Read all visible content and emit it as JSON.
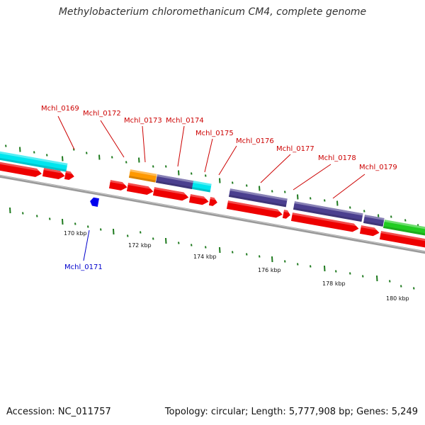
{
  "title": "Methylobacterium chloromethanicum CM4, complete genome",
  "footer": {
    "accession": "Accession: NC_011757",
    "summary": "Topology: circular; Length: 5,777,908 bp; Genes: 5,249"
  },
  "colors": {
    "backbone": "#8a8a8a",
    "cds_forward": "#ee0000",
    "cds_reverse": "#0000ee",
    "label_forward": "#cc0000",
    "label_reverse": "#0000cc",
    "cyan": "#00e5ee",
    "navy": "#4b3f8f",
    "orange": "#ff9900",
    "green": "#22cc22",
    "gc_tick": "#1e7a1e"
  },
  "scale_labels": [
    "170 kbp",
    "172 kbp",
    "174 kbp",
    "176 kbp",
    "178 kbp",
    "180 kbp"
  ],
  "gene_labels": [
    {
      "text": "Mchl_0169",
      "strand": "forward"
    },
    {
      "text": "Mchl_0172",
      "strand": "forward"
    },
    {
      "text": "Mchl_0173",
      "strand": "forward"
    },
    {
      "text": "Mchl_0174",
      "strand": "forward"
    },
    {
      "text": "Mchl_0175",
      "strand": "forward"
    },
    {
      "text": "Mchl_0176",
      "strand": "forward"
    },
    {
      "text": "Mchl_0177",
      "strand": "forward"
    },
    {
      "text": "Mchl_0178",
      "strand": "forward"
    },
    {
      "text": "Mchl_0179",
      "strand": "forward"
    },
    {
      "text": "Mchl_0171",
      "strand": "reverse"
    }
  ]
}
